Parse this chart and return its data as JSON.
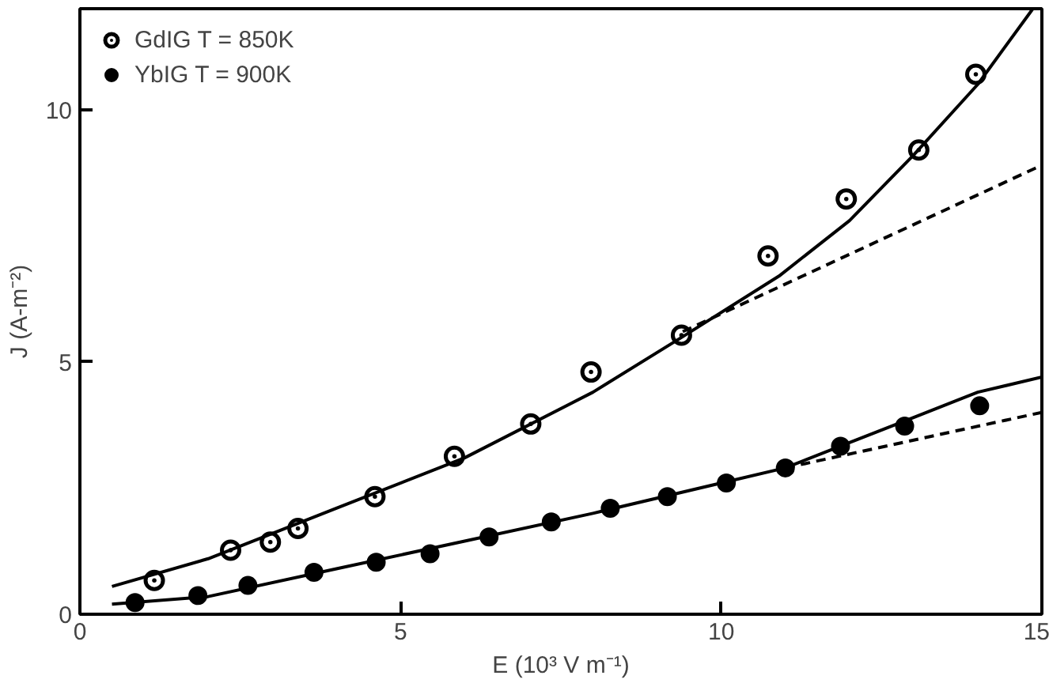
{
  "chart_data": {
    "type": "scatter",
    "xlabel": "E (10³ V m⁻¹)",
    "ylabel": "J (A-m⁻²)",
    "xlim": [
      0,
      15
    ],
    "ylim": [
      0,
      12
    ],
    "xticks": [
      0,
      5,
      10,
      15
    ],
    "yticks": [
      0,
      5,
      10
    ],
    "grid": false,
    "legend": "top left",
    "series": [
      {
        "name": "GdIG T = 850K",
        "color": "#000000",
        "marker": "circle_dot",
        "x": [
          1.16,
          2.35,
          2.97,
          3.4,
          4.6,
          5.84,
          7.03,
          7.97,
          9.38,
          10.73,
          11.95,
          13.08,
          13.97
        ],
        "values": [
          0.67,
          1.27,
          1.43,
          1.7,
          2.33,
          3.13,
          3.77,
          4.8,
          5.53,
          7.1,
          8.23,
          9.2,
          10.7
        ]
      },
      {
        "name": "YbIG T = 900K",
        "color": "#000000",
        "marker": "circle",
        "x": [
          0.86,
          1.84,
          2.62,
          3.65,
          4.62,
          5.46,
          6.38,
          7.35,
          8.27,
          9.16,
          10.08,
          11.0,
          11.86,
          12.86,
          14.03
        ],
        "values": [
          0.23,
          0.37,
          0.57,
          0.83,
          1.03,
          1.2,
          1.53,
          1.83,
          2.1,
          2.33,
          2.6,
          2.9,
          3.33,
          3.73,
          4.13
        ]
      },
      {
        "type": "line",
        "color": "#000000",
        "line_style": "solid",
        "x": [
          0.5,
          2,
          4,
          6,
          8,
          9.4,
          10.9,
          12,
          13,
          14,
          14.86
        ],
        "values": [
          0.55,
          1.1,
          2.1,
          3.1,
          4.4,
          5.5,
          6.7,
          7.8,
          9.1,
          10.5,
          12
        ]
      },
      {
        "type": "line",
        "color": "#000000",
        "line_style": "dashed",
        "x": [
          9.4,
          15
        ],
        "values": [
          5.6,
          8.9
        ]
      },
      {
        "type": "line",
        "color": "#000000",
        "line_style": "solid",
        "x": [
          0.5,
          2,
          4,
          6,
          8,
          10,
          11,
          12,
          13,
          14,
          15
        ],
        "values": [
          0.2,
          0.35,
          0.9,
          1.45,
          2.0,
          2.6,
          2.9,
          3.4,
          3.9,
          4.4,
          4.7
        ]
      },
      {
        "type": "line",
        "color": "#000000",
        "line_style": "dashed",
        "x": [
          11,
          15
        ],
        "values": [
          2.9,
          4.0
        ]
      }
    ]
  }
}
